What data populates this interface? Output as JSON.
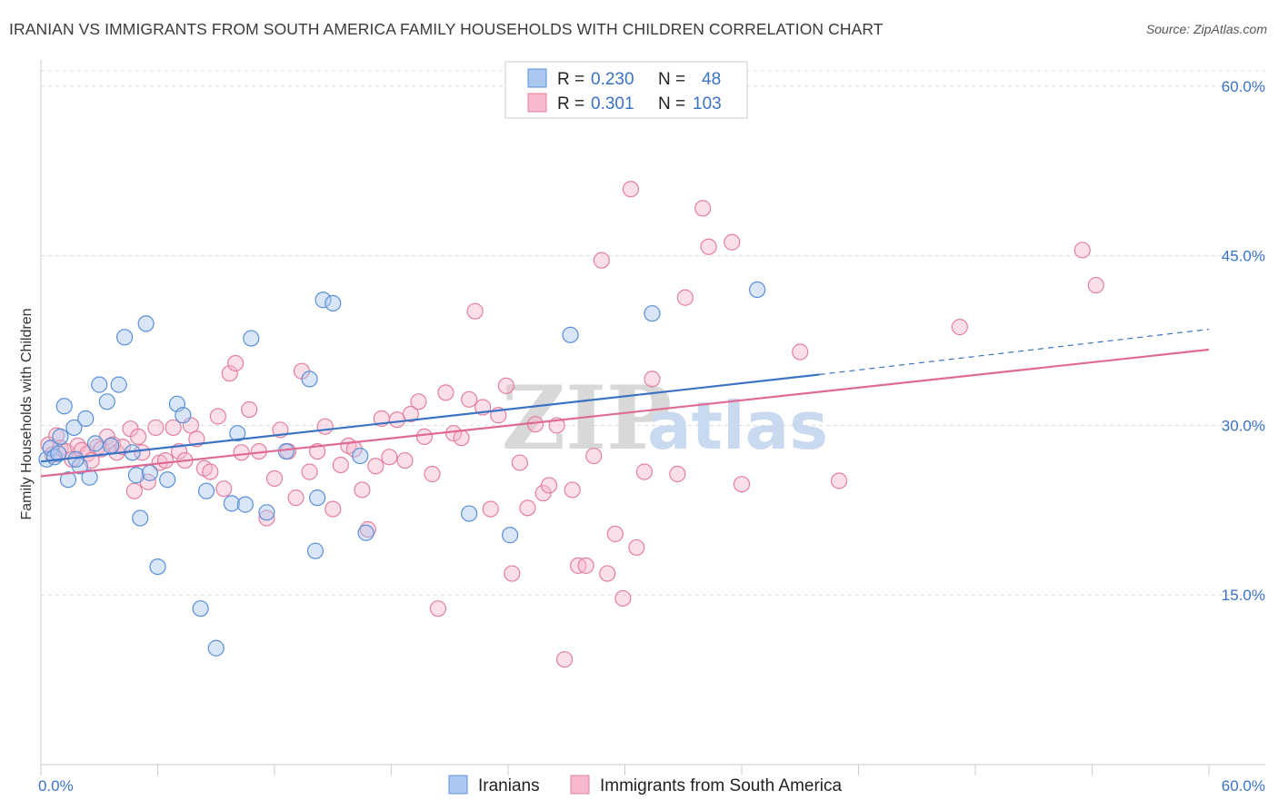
{
  "title": "IRANIAN VS IMMIGRANTS FROM SOUTH AMERICA FAMILY HOUSEHOLDS WITH CHILDREN CORRELATION CHART",
  "source": "Source: ZipAtlas.com",
  "watermark": {
    "zip": "ZIP",
    "atlas": "atlas"
  },
  "colors": {
    "blue_fill": "#aac8f0",
    "blue_stroke": "#5a8fd6",
    "blue_line": "#3b73c4",
    "pink_fill": "#f6b9cc",
    "pink_stroke": "#e2809f",
    "pink_line": "#e06a94",
    "grid": "#dcdcdc",
    "axis_text": "#3b73c4"
  },
  "legend": {
    "rows": [
      {
        "r_label": "R =",
        "r_value": "0.230",
        "n_label": "N =",
        "n_value": "48"
      },
      {
        "r_label": "R =",
        "r_value": "0.301",
        "n_label": "N =",
        "n_value": "103"
      }
    ]
  },
  "chart_data": {
    "type": "scatter",
    "title": "IRANIAN VS IMMIGRANTS FROM SOUTH AMERICA FAMILY HOUSEHOLDS WITH CHILDREN CORRELATION CHART",
    "xlabel": "",
    "ylabel": "Family Households with Children",
    "xlim": [
      0,
      60
    ],
    "ylim": [
      0,
      62
    ],
    "x_tick_labels": [
      "0.0%",
      "60.0%"
    ],
    "y_ticks": [
      15,
      30,
      45,
      60
    ],
    "y_tick_labels": [
      "15.0%",
      "30.0%",
      "45.0%",
      "60.0%"
    ],
    "legend_position": "top-center",
    "series": [
      {
        "name": "Iranians",
        "color": "#aac8f0",
        "r": 0.23,
        "n": 48,
        "trend": {
          "x0": 0,
          "y0": 26.8,
          "x1": 40,
          "y1": 34.5,
          "dash_to_x": 60,
          "dash_to_y": 38.5
        },
        "points": [
          [
            0.3,
            27.0
          ],
          [
            0.5,
            28.0
          ],
          [
            0.7,
            27.2
          ],
          [
            0.9,
            27.5
          ],
          [
            1.0,
            29.0
          ],
          [
            1.2,
            31.7
          ],
          [
            1.4,
            25.2
          ],
          [
            1.7,
            29.8
          ],
          [
            2.0,
            26.4
          ],
          [
            2.3,
            30.6
          ],
          [
            2.5,
            25.4
          ],
          [
            2.8,
            28.4
          ],
          [
            3.0,
            33.6
          ],
          [
            3.4,
            32.1
          ],
          [
            3.6,
            28.2
          ],
          [
            4.0,
            33.6
          ],
          [
            4.3,
            37.8
          ],
          [
            4.7,
            27.6
          ],
          [
            4.9,
            25.6
          ],
          [
            5.1,
            21.8
          ],
          [
            5.4,
            39.0
          ],
          [
            5.6,
            25.8
          ],
          [
            6.0,
            17.5
          ],
          [
            6.5,
            25.2
          ],
          [
            7.0,
            31.9
          ],
          [
            7.3,
            30.9
          ],
          [
            8.2,
            13.8
          ],
          [
            8.5,
            24.2
          ],
          [
            9.0,
            10.3
          ],
          [
            9.8,
            23.1
          ],
          [
            10.1,
            29.3
          ],
          [
            10.5,
            23.0
          ],
          [
            10.8,
            37.7
          ],
          [
            11.6,
            22.3
          ],
          [
            12.6,
            27.7
          ],
          [
            13.8,
            34.1
          ],
          [
            14.1,
            18.9
          ],
          [
            14.2,
            23.6
          ],
          [
            14.5,
            41.1
          ],
          [
            15.0,
            40.8
          ],
          [
            16.4,
            27.3
          ],
          [
            16.7,
            20.5
          ],
          [
            22.0,
            22.2
          ],
          [
            24.1,
            20.3
          ],
          [
            27.2,
            38.0
          ],
          [
            31.4,
            39.9
          ],
          [
            36.8,
            42.0
          ],
          [
            1.8,
            27.0
          ]
        ]
      },
      {
        "name": "Immigrants from South America",
        "color": "#f6b9cc",
        "r": 0.301,
        "n": 103,
        "trend": {
          "x0": 0,
          "y0": 25.5,
          "x1": 60,
          "y1": 36.7
        },
        "points": [
          [
            0.4,
            28.3
          ],
          [
            0.6,
            27.4
          ],
          [
            0.8,
            29.1
          ],
          [
            1.0,
            28.0
          ],
          [
            1.3,
            27.7
          ],
          [
            1.6,
            27.0
          ],
          [
            1.9,
            28.2
          ],
          [
            2.1,
            27.8
          ],
          [
            2.4,
            27.5
          ],
          [
            2.6,
            26.9
          ],
          [
            2.9,
            28.1
          ],
          [
            3.1,
            27.9
          ],
          [
            3.4,
            29.0
          ],
          [
            3.7,
            28.3
          ],
          [
            3.9,
            27.6
          ],
          [
            4.2,
            28.1
          ],
          [
            4.6,
            29.7
          ],
          [
            4.8,
            24.2
          ],
          [
            5.2,
            27.6
          ],
          [
            5.5,
            25.0
          ],
          [
            5.9,
            29.8
          ],
          [
            6.1,
            26.7
          ],
          [
            6.4,
            26.9
          ],
          [
            6.8,
            29.8
          ],
          [
            7.1,
            27.7
          ],
          [
            7.4,
            26.9
          ],
          [
            7.7,
            30.0
          ],
          [
            8.0,
            28.8
          ],
          [
            8.4,
            26.2
          ],
          [
            8.7,
            25.9
          ],
          [
            9.1,
            30.8
          ],
          [
            9.4,
            24.4
          ],
          [
            9.7,
            34.6
          ],
          [
            10.0,
            35.5
          ],
          [
            10.3,
            27.6
          ],
          [
            10.7,
            31.4
          ],
          [
            11.2,
            27.7
          ],
          [
            11.6,
            21.8
          ],
          [
            12.0,
            25.3
          ],
          [
            12.3,
            29.6
          ],
          [
            12.7,
            27.7
          ],
          [
            13.1,
            23.6
          ],
          [
            13.4,
            34.8
          ],
          [
            13.8,
            25.9
          ],
          [
            14.2,
            27.7
          ],
          [
            14.6,
            29.9
          ],
          [
            15.0,
            22.6
          ],
          [
            15.4,
            26.5
          ],
          [
            15.8,
            28.2
          ],
          [
            16.1,
            27.9
          ],
          [
            16.5,
            24.3
          ],
          [
            16.8,
            20.8
          ],
          [
            17.2,
            26.4
          ],
          [
            17.5,
            30.6
          ],
          [
            17.9,
            27.2
          ],
          [
            18.3,
            30.5
          ],
          [
            18.7,
            26.9
          ],
          [
            19.0,
            31.0
          ],
          [
            19.4,
            32.1
          ],
          [
            19.7,
            29.0
          ],
          [
            20.1,
            25.7
          ],
          [
            20.4,
            13.8
          ],
          [
            20.8,
            32.9
          ],
          [
            21.2,
            29.3
          ],
          [
            21.6,
            28.9
          ],
          [
            22.0,
            32.3
          ],
          [
            22.3,
            40.1
          ],
          [
            22.7,
            31.6
          ],
          [
            23.1,
            22.6
          ],
          [
            23.5,
            30.9
          ],
          [
            23.9,
            33.5
          ],
          [
            24.2,
            16.9
          ],
          [
            24.6,
            26.7
          ],
          [
            25.0,
            22.7
          ],
          [
            25.4,
            30.1
          ],
          [
            25.8,
            24.0
          ],
          [
            26.1,
            24.7
          ],
          [
            26.5,
            30.0
          ],
          [
            26.9,
            9.3
          ],
          [
            27.3,
            24.3
          ],
          [
            27.6,
            17.6
          ],
          [
            28.0,
            17.6
          ],
          [
            28.4,
            27.3
          ],
          [
            28.8,
            44.6
          ],
          [
            29.1,
            16.9
          ],
          [
            29.5,
            20.4
          ],
          [
            29.9,
            14.7
          ],
          [
            30.3,
            50.9
          ],
          [
            30.6,
            19.2
          ],
          [
            31.0,
            25.9
          ],
          [
            31.4,
            34.1
          ],
          [
            32.7,
            25.7
          ],
          [
            33.1,
            41.3
          ],
          [
            34.0,
            49.2
          ],
          [
            34.3,
            45.8
          ],
          [
            35.5,
            46.2
          ],
          [
            36.0,
            24.8
          ],
          [
            39.0,
            36.5
          ],
          [
            41.0,
            25.1
          ],
          [
            47.2,
            38.7
          ],
          [
            53.5,
            45.5
          ],
          [
            54.2,
            42.4
          ],
          [
            5.0,
            29.0
          ]
        ]
      }
    ]
  }
}
